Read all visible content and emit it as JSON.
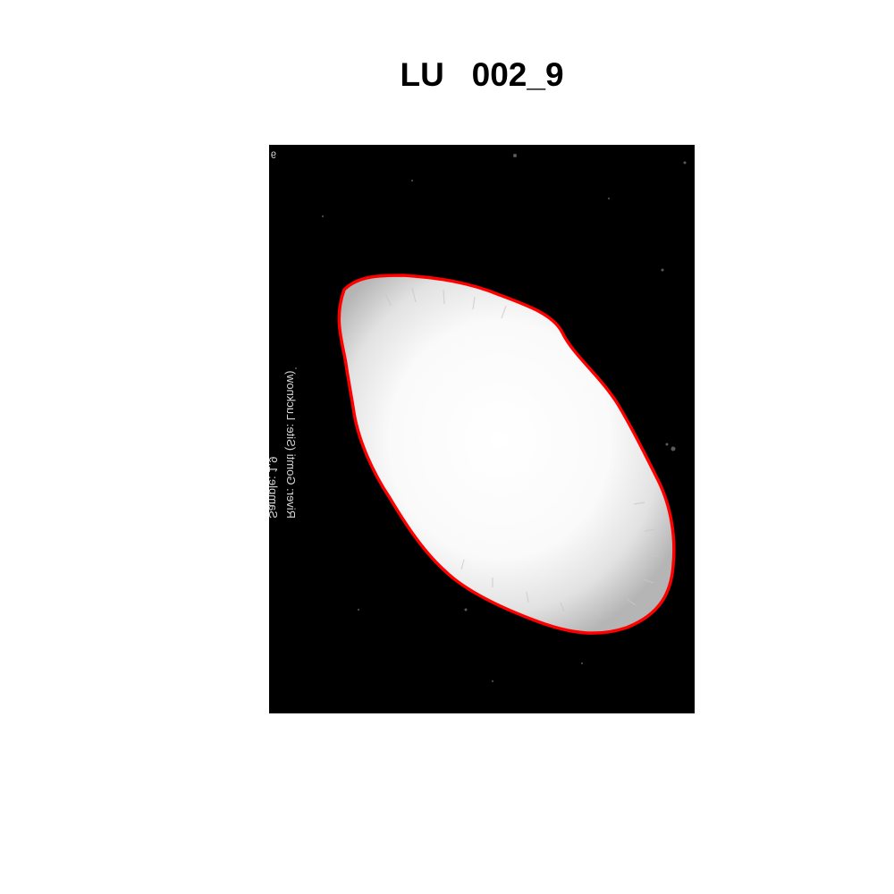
{
  "figure": {
    "title": "LU   002_9"
  },
  "photo": {
    "label_sample": "Sample: 1.9",
    "label_river": "River: Gomti (Site: Lucknow)",
    "label_corner": "9",
    "outline_color": "#ff0000",
    "background_color": "#000000",
    "specimen_color": "#ffffff"
  }
}
